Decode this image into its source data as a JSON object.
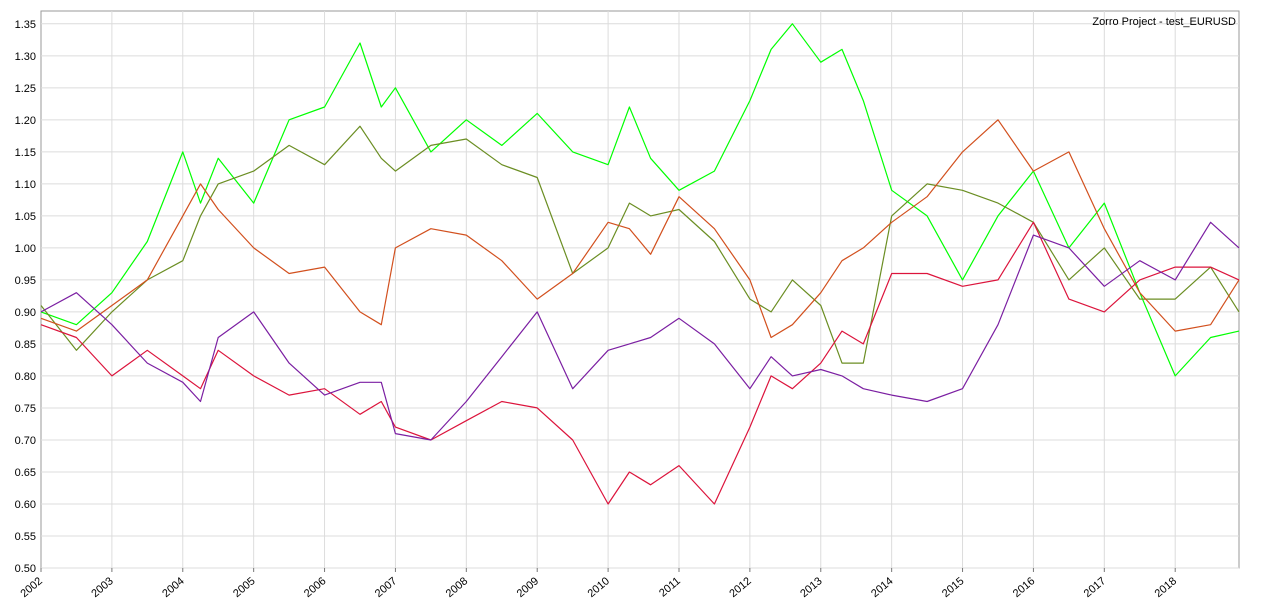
{
  "window": {
    "title": "Zorro Project - test_EURUSD"
  },
  "chart_data": {
    "type": "line",
    "title": "Zorro Project - test_EURUSD",
    "xlabel": "",
    "ylabel": "",
    "xlim": [
      2002.0,
      2018.9
    ],
    "ylim": [
      0.5,
      1.37
    ],
    "x_ticks": [
      "2002",
      "2003",
      "2004",
      "2005",
      "2006",
      "2007",
      "2008",
      "2009",
      "2010",
      "2011",
      "2012",
      "2013",
      "2014",
      "2015",
      "2016",
      "2017",
      "2018"
    ],
    "y_ticks": [
      "0.50",
      "0.55",
      "0.60",
      "0.65",
      "0.70",
      "0.75",
      "0.80",
      "0.85",
      "0.90",
      "0.95",
      "1.00",
      "1.05",
      "1.10",
      "1.15",
      "1.20",
      "1.25",
      "1.30",
      "1.35"
    ],
    "grid": true,
    "legend": "none",
    "x": [
      2002.0,
      2002.5,
      2003.0,
      2003.5,
      2004.0,
      2004.25,
      2004.5,
      2005.0,
      2005.5,
      2006.0,
      2006.5,
      2006.8,
      2007.0,
      2007.5,
      2008.0,
      2008.5,
      2009.0,
      2009.5,
      2010.0,
      2010.3,
      2010.6,
      2011.0,
      2011.5,
      2012.0,
      2012.3,
      2012.6,
      2013.0,
      2013.3,
      2013.6,
      2014.0,
      2014.5,
      2015.0,
      2015.5,
      2016.0,
      2016.5,
      2017.0,
      2017.5,
      2018.0,
      2018.5,
      2018.9
    ],
    "series": [
      {
        "color": "#00ff00",
        "values": [
          0.9,
          0.88,
          0.93,
          1.01,
          1.15,
          1.07,
          1.14,
          1.07,
          1.2,
          1.22,
          1.32,
          1.22,
          1.25,
          1.15,
          1.2,
          1.16,
          1.21,
          1.15,
          1.13,
          1.22,
          1.14,
          1.09,
          1.12,
          1.23,
          1.31,
          1.35,
          1.29,
          1.31,
          1.23,
          1.09,
          1.05,
          0.95,
          1.05,
          1.12,
          1.0,
          1.07,
          0.93,
          0.8,
          0.86,
          0.87
        ]
      },
      {
        "color": "#6b8e23",
        "values": [
          0.91,
          0.84,
          0.9,
          0.95,
          0.98,
          1.05,
          1.1,
          1.12,
          1.16,
          1.13,
          1.19,
          1.14,
          1.12,
          1.16,
          1.17,
          1.13,
          1.11,
          0.96,
          1.0,
          1.07,
          1.05,
          1.06,
          1.01,
          0.92,
          0.9,
          0.95,
          0.91,
          0.82,
          0.82,
          1.05,
          1.1,
          1.09,
          1.07,
          1.04,
          0.95,
          1.0,
          0.92,
          0.92,
          0.97,
          0.9
        ]
      },
      {
        "color": "#d2501e",
        "values": [
          0.89,
          0.87,
          0.91,
          0.95,
          1.05,
          1.1,
          1.06,
          1.0,
          0.96,
          0.97,
          0.9,
          0.88,
          1.0,
          1.03,
          1.02,
          0.98,
          0.92,
          0.96,
          1.04,
          1.03,
          0.99,
          1.08,
          1.03,
          0.95,
          0.86,
          0.88,
          0.93,
          0.98,
          1.0,
          1.04,
          1.08,
          1.15,
          1.2,
          1.12,
          1.15,
          1.03,
          0.93,
          0.87,
          0.88,
          0.95
        ]
      },
      {
        "color": "#dc143c",
        "values": [
          0.88,
          0.86,
          0.8,
          0.84,
          0.8,
          0.78,
          0.84,
          0.8,
          0.77,
          0.78,
          0.74,
          0.76,
          0.72,
          0.7,
          0.73,
          0.76,
          0.75,
          0.7,
          0.6,
          0.65,
          0.63,
          0.66,
          0.6,
          0.72,
          0.8,
          0.78,
          0.82,
          0.87,
          0.85,
          0.96,
          0.96,
          0.94,
          0.95,
          1.04,
          0.92,
          0.9,
          0.95,
          0.97,
          0.97,
          0.95
        ]
      },
      {
        "color": "#7b1fa2",
        "values": [
          0.9,
          0.93,
          0.88,
          0.82,
          0.79,
          0.76,
          0.86,
          0.9,
          0.82,
          0.77,
          0.79,
          0.79,
          0.71,
          0.7,
          0.76,
          0.83,
          0.9,
          0.78,
          0.84,
          0.85,
          0.86,
          0.89,
          0.85,
          0.78,
          0.83,
          0.8,
          0.81,
          0.8,
          0.78,
          0.77,
          0.76,
          0.78,
          0.88,
          1.02,
          1.0,
          0.94,
          0.98,
          0.95,
          1.04,
          1.0
        ]
      }
    ]
  }
}
